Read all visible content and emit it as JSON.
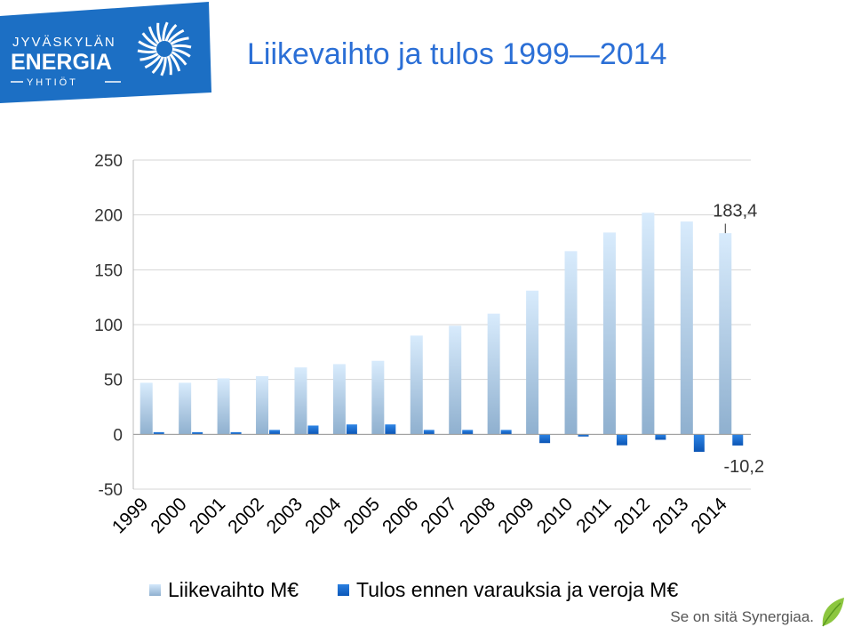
{
  "logo": {
    "line1": "JYVÄSKYLÄN",
    "line2": "ENERGIA",
    "line3": "Y H T I Ö T",
    "brand_color": "#1c6fc4"
  },
  "title": "Liikevaihto ja tulos 1999—2014",
  "footer": {
    "slogan": "Se on sitä Synergiaa."
  },
  "chart_data": {
    "type": "bar",
    "categories": [
      "1999",
      "2000",
      "2001",
      "2002",
      "2003",
      "2004",
      "2005",
      "2006",
      "2007",
      "2008",
      "2009",
      "2010",
      "2011",
      "2012",
      "2013",
      "2014"
    ],
    "series": [
      {
        "name": "Liikevaihto M€",
        "color": "#b9d7f5",
        "values": [
          47,
          47,
          51,
          53,
          61,
          64,
          67,
          90,
          99,
          110,
          131,
          167,
          184,
          202,
          194,
          183.4
        ]
      },
      {
        "name": "Tulos ennen varauksia ja veroja M€",
        "color": "#1a6fd4",
        "values": [
          2,
          2,
          2,
          4,
          8,
          9,
          9,
          4,
          4,
          4,
          -8,
          -2,
          -10,
          -5,
          -16,
          -10.2
        ]
      }
    ],
    "ylim": [
      -50,
      250
    ],
    "yticks": [
      -50,
      0,
      50,
      100,
      150,
      200,
      250
    ],
    "annotations": [
      {
        "text": "183,4",
        "category": "2014",
        "value": 183.4
      },
      {
        "text": "-10,2",
        "category": "2014",
        "value": -10.2
      }
    ],
    "grid": true,
    "legend": "bottom"
  }
}
